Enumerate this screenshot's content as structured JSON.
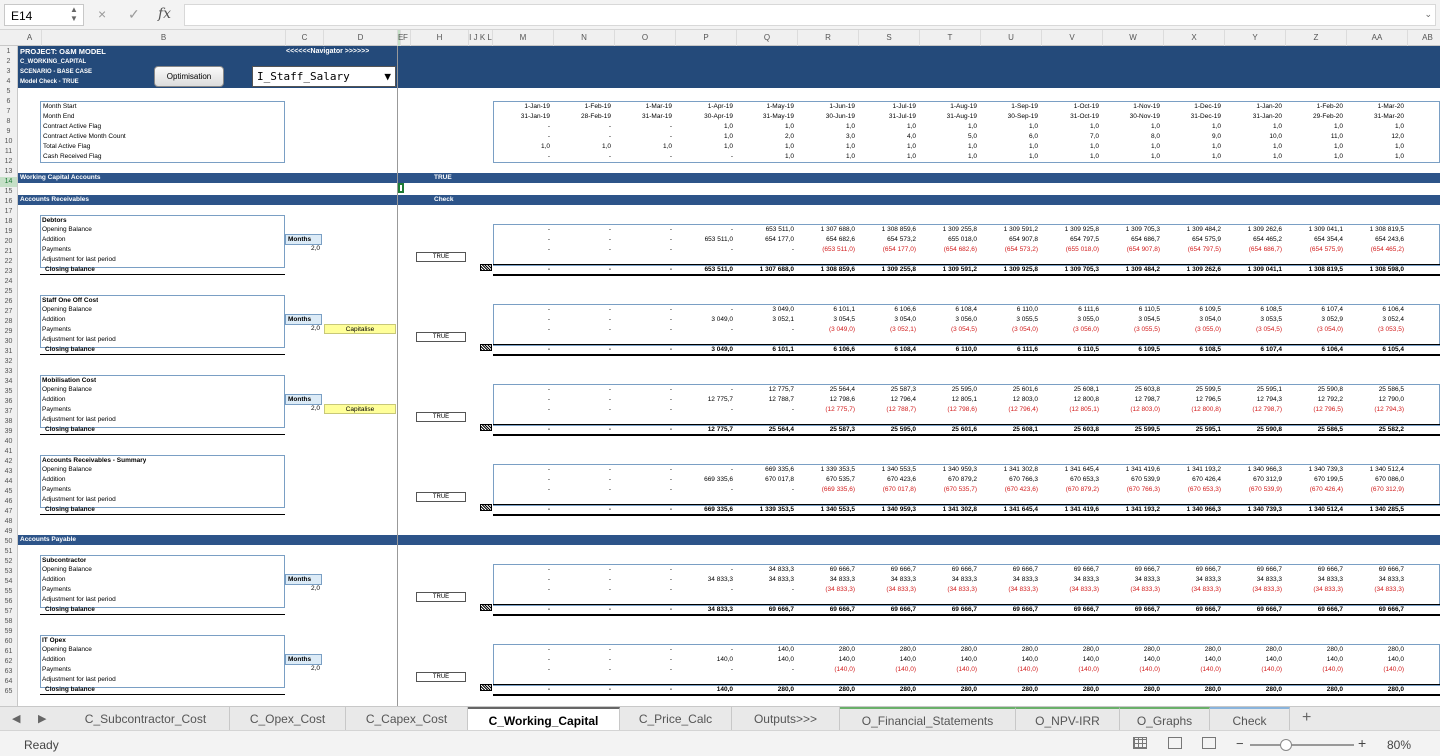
{
  "formula_bar": {
    "name_box": "E14",
    "cancel_icon": "×",
    "enter_icon": "✓",
    "fx_label": "fx",
    "formula": ""
  },
  "columns": [
    "A",
    "B",
    "C",
    "D",
    "E",
    "F",
    "G",
    "H",
    "I",
    "J",
    "K",
    "L",
    "M",
    "N",
    "O",
    "P",
    "Q",
    "R",
    "S",
    "T",
    "U",
    "V",
    "W",
    "X",
    "Y",
    "Z",
    "AA",
    "AB"
  ],
  "column_header_labels": {
    "E": "E",
    "FG": "F G",
    "H": "H",
    "IJKL": "I J K L",
    "M": "M",
    "N": "N",
    "O": "O",
    "P": "P",
    "Q": "Q",
    "R": "R",
    "S": "S",
    "T": "T",
    "U": "U",
    "V": "V",
    "W": "W",
    "X": "X",
    "Y": "Y",
    "Z": "Z",
    "AA": "AA",
    "AB": "AB",
    "A": "A",
    "B": "B",
    "C": "C",
    "D": "D"
  },
  "header": {
    "project": "PROJECT: O&M MODEL",
    "sheet": "C_WORKING_CAPITAL",
    "scenario": "SCENARIO - BASE CASE",
    "model_check": "Model Check - TRUE",
    "navigator": "<<<<<<Navigator >>>>>>",
    "optimisation_button": "Optimisation",
    "dropdown_value": "I_Staff_Salary",
    "dropdown_arrow": "▼"
  },
  "timing": {
    "labels": [
      "Month Start",
      "Month End",
      "Contract Active Flag",
      "Contract Active Month Count",
      "Total Active Flag",
      "Cash Received Flag"
    ],
    "cols": [
      [
        "1-Jan-19",
        "31-Jan-19",
        "-",
        "-",
        "1,0",
        "-"
      ],
      [
        "1-Feb-19",
        "28-Feb-19",
        "-",
        "-",
        "1,0",
        "-"
      ],
      [
        "1-Mar-19",
        "31-Mar-19",
        "-",
        "-",
        "1,0",
        "-"
      ],
      [
        "1-Apr-19",
        "30-Apr-19",
        "1,0",
        "1,0",
        "1,0",
        "-"
      ],
      [
        "1-May-19",
        "31-May-19",
        "1,0",
        "2,0",
        "1,0",
        "1,0"
      ],
      [
        "1-Jun-19",
        "30-Jun-19",
        "1,0",
        "3,0",
        "1,0",
        "1,0"
      ],
      [
        "1-Jul-19",
        "31-Jul-19",
        "1,0",
        "4,0",
        "1,0",
        "1,0"
      ],
      [
        "1-Aug-19",
        "31-Aug-19",
        "1,0",
        "5,0",
        "1,0",
        "1,0"
      ],
      [
        "1-Sep-19",
        "30-Sep-19",
        "1,0",
        "6,0",
        "1,0",
        "1,0"
      ],
      [
        "1-Oct-19",
        "31-Oct-19",
        "1,0",
        "7,0",
        "1,0",
        "1,0"
      ],
      [
        "1-Nov-19",
        "30-Nov-19",
        "1,0",
        "8,0",
        "1,0",
        "1,0"
      ],
      [
        "1-Dec-19",
        "31-Dec-19",
        "1,0",
        "9,0",
        "1,0",
        "1,0"
      ],
      [
        "1-Jan-20",
        "31-Jan-20",
        "1,0",
        "10,0",
        "1,0",
        "1,0"
      ],
      [
        "1-Feb-20",
        "29-Feb-20",
        "1,0",
        "11,0",
        "1,0",
        "1,0"
      ],
      [
        "1-Mar-20",
        "31-Mar-20",
        "1,0",
        "12,0",
        "1,0",
        "1,0"
      ]
    ]
  },
  "bands": {
    "working_capital": "Working Capital Accounts",
    "true_label": "TRUE",
    "accounts_receivables": "Accounts Receivables",
    "check_label": "Check",
    "accounts_payable": "Accounts Payable"
  },
  "row_labels": [
    "Opening Balance",
    "Addition",
    "Payments",
    "Adjustment for last period",
    "Closing balance"
  ],
  "months_label": "Months",
  "months_value": "2,0",
  "capitalise_label": "Capitalise",
  "true_check": "TRUE",
  "sections": [
    {
      "title": "Debtors",
      "capitalise": false,
      "rows": [
        [
          "-",
          "-",
          "-",
          "-",
          "653 511,0",
          "1 307 688,0",
          "1 308 859,6",
          "1 309 255,8",
          "1 309 591,2",
          "1 309 925,8",
          "1 309 705,3",
          "1 309 484,2",
          "1 309 262,6",
          "1 309 041,1",
          "1 308 819,5"
        ],
        [
          "-",
          "-",
          "-",
          "653 511,0",
          "654 177,0",
          "654 682,6",
          "654 573,2",
          "655 018,0",
          "654 907,8",
          "654 797,5",
          "654 686,7",
          "654 575,9",
          "654 465,2",
          "654 354,4",
          "654 243,6"
        ],
        [
          "-",
          "-",
          "-",
          "-",
          "-",
          "(653 511,0)",
          "(654 177,0)",
          "(654 682,6)",
          "(654 573,2)",
          "(655 018,0)",
          "(654 907,8)",
          "(654 797,5)",
          "(654 686,7)",
          "(654 575,9)",
          "(654 465,2)"
        ],
        [
          "",
          "",
          "",
          "",
          "",
          "",
          "",
          "",
          "",
          "",
          "",
          "",
          "",
          "",
          ""
        ],
        [
          "-",
          "-",
          "-",
          "653 511,0",
          "1 307 688,0",
          "1 308 859,6",
          "1 309 255,8",
          "1 309 591,2",
          "1 309 925,8",
          "1 309 705,3",
          "1 309 484,2",
          "1 309 262,6",
          "1 309 041,1",
          "1 308 819,5",
          "1 308 598,0"
        ]
      ]
    },
    {
      "title": "Staff One Off Cost",
      "capitalise": true,
      "rows": [
        [
          "-",
          "-",
          "-",
          "-",
          "3 049,0",
          "6 101,1",
          "6 106,6",
          "6 108,4",
          "6 110,0",
          "6 111,6",
          "6 110,5",
          "6 109,5",
          "6 108,5",
          "6 107,4",
          "6 106,4"
        ],
        [
          "-",
          "-",
          "-",
          "3 049,0",
          "3 052,1",
          "3 054,5",
          "3 054,0",
          "3 056,0",
          "3 055,5",
          "3 055,0",
          "3 054,5",
          "3 054,0",
          "3 053,5",
          "3 052,9",
          "3 052,4"
        ],
        [
          "-",
          "-",
          "-",
          "-",
          "-",
          "(3 049,0)",
          "(3 052,1)",
          "(3 054,5)",
          "(3 054,0)",
          "(3 056,0)",
          "(3 055,5)",
          "(3 055,0)",
          "(3 054,5)",
          "(3 054,0)",
          "(3 053,5)"
        ],
        [
          "",
          "",
          "",
          "",
          "",
          "",
          "",
          "",
          "",
          "",
          "",
          "",
          "",
          "",
          ""
        ],
        [
          "-",
          "-",
          "-",
          "3 049,0",
          "6 101,1",
          "6 106,6",
          "6 108,4",
          "6 110,0",
          "6 111,6",
          "6 110,5",
          "6 109,5",
          "6 108,5",
          "6 107,4",
          "6 106,4",
          "6 105,4"
        ]
      ]
    },
    {
      "title": "Mobilisation Cost",
      "capitalise": true,
      "rows": [
        [
          "-",
          "-",
          "-",
          "-",
          "12 775,7",
          "25 564,4",
          "25 587,3",
          "25 595,0",
          "25 601,6",
          "25 608,1",
          "25 603,8",
          "25 599,5",
          "25 595,1",
          "25 590,8",
          "25 586,5"
        ],
        [
          "-",
          "-",
          "-",
          "12 775,7",
          "12 788,7",
          "12 798,6",
          "12 796,4",
          "12 805,1",
          "12 803,0",
          "12 800,8",
          "12 798,7",
          "12 796,5",
          "12 794,3",
          "12 792,2",
          "12 790,0"
        ],
        [
          "-",
          "-",
          "-",
          "-",
          "-",
          "(12 775,7)",
          "(12 788,7)",
          "(12 798,6)",
          "(12 796,4)",
          "(12 805,1)",
          "(12 803,0)",
          "(12 800,8)",
          "(12 798,7)",
          "(12 796,5)",
          "(12 794,3)"
        ],
        [
          "",
          "",
          "",
          "",
          "",
          "",
          "",
          "",
          "",
          "",
          "",
          "",
          "",
          "",
          ""
        ],
        [
          "-",
          "-",
          "-",
          "12 775,7",
          "25 564,4",
          "25 587,3",
          "25 595,0",
          "25 601,6",
          "25 608,1",
          "25 603,8",
          "25 599,5",
          "25 595,1",
          "25 590,8",
          "25 586,5",
          "25 582,2"
        ]
      ]
    },
    {
      "title": "Accounts Receivables - Summary",
      "capitalise": false,
      "no_months": true,
      "rows": [
        [
          "-",
          "-",
          "-",
          "-",
          "669 335,6",
          "1 339 353,5",
          "1 340 553,5",
          "1 340 959,3",
          "1 341 302,8",
          "1 341 645,4",
          "1 341 419,6",
          "1 341 193,2",
          "1 340 966,3",
          "1 340 739,3",
          "1 340 512,4"
        ],
        [
          "-",
          "-",
          "-",
          "669 335,6",
          "670 017,8",
          "670 535,7",
          "670 423,6",
          "670 879,2",
          "670 766,3",
          "670 653,3",
          "670 539,9",
          "670 426,4",
          "670 312,9",
          "670 199,5",
          "670 086,0"
        ],
        [
          "-",
          "-",
          "-",
          "-",
          "-",
          "(669 335,6)",
          "(670 017,8)",
          "(670 535,7)",
          "(670 423,6)",
          "(670 879,2)",
          "(670 766,3)",
          "(670 653,3)",
          "(670 539,9)",
          "(670 426,4)",
          "(670 312,9)"
        ],
        [
          "",
          "",
          "",
          "",
          "",
          "",
          "",
          "",
          "",
          "",
          "",
          "",
          "",
          "",
          ""
        ],
        [
          "-",
          "-",
          "-",
          "669 335,6",
          "1 339 353,5",
          "1 340 553,5",
          "1 340 959,3",
          "1 341 302,8",
          "1 341 645,4",
          "1 341 419,6",
          "1 341 193,2",
          "1 340 966,3",
          "1 340 739,3",
          "1 340 512,4",
          "1 340 285,5"
        ]
      ]
    },
    {
      "title": "Subcontractor",
      "capitalise": false,
      "rows": [
        [
          "-",
          "-",
          "-",
          "-",
          "34 833,3",
          "69 666,7",
          "69 666,7",
          "69 666,7",
          "69 666,7",
          "69 666,7",
          "69 666,7",
          "69 666,7",
          "69 666,7",
          "69 666,7",
          "69 666,7"
        ],
        [
          "-",
          "-",
          "-",
          "34 833,3",
          "34 833,3",
          "34 833,3",
          "34 833,3",
          "34 833,3",
          "34 833,3",
          "34 833,3",
          "34 833,3",
          "34 833,3",
          "34 833,3",
          "34 833,3",
          "34 833,3"
        ],
        [
          "-",
          "-",
          "-",
          "-",
          "-",
          "(34 833,3)",
          "(34 833,3)",
          "(34 833,3)",
          "(34 833,3)",
          "(34 833,3)",
          "(34 833,3)",
          "(34 833,3)",
          "(34 833,3)",
          "(34 833,3)",
          "(34 833,3)"
        ],
        [
          "",
          "",
          "",
          "",
          "",
          "",
          "",
          "",
          "",
          "",
          "",
          "",
          "",
          "",
          ""
        ],
        [
          "-",
          "-",
          "-",
          "34 833,3",
          "69 666,7",
          "69 666,7",
          "69 666,7",
          "69 666,7",
          "69 666,7",
          "69 666,7",
          "69 666,7",
          "69 666,7",
          "69 666,7",
          "69 666,7",
          "69 666,7"
        ]
      ]
    },
    {
      "title": "IT Opex",
      "capitalise": false,
      "rows": [
        [
          "-",
          "-",
          "-",
          "-",
          "140,0",
          "280,0",
          "280,0",
          "280,0",
          "280,0",
          "280,0",
          "280,0",
          "280,0",
          "280,0",
          "280,0",
          "280,0"
        ],
        [
          "-",
          "-",
          "-",
          "140,0",
          "140,0",
          "140,0",
          "140,0",
          "140,0",
          "140,0",
          "140,0",
          "140,0",
          "140,0",
          "140,0",
          "140,0",
          "140,0"
        ],
        [
          "-",
          "-",
          "-",
          "-",
          "-",
          "(140,0)",
          "(140,0)",
          "(140,0)",
          "(140,0)",
          "(140,0)",
          "(140,0)",
          "(140,0)",
          "(140,0)",
          "(140,0)",
          "(140,0)"
        ],
        [
          "",
          "",
          "",
          "",
          "",
          "",
          "",
          "",
          "",
          "",
          "",
          "",
          "",
          "",
          ""
        ],
        [
          "-",
          "-",
          "-",
          "140,0",
          "280,0",
          "280,0",
          "280,0",
          "280,0",
          "280,0",
          "280,0",
          "280,0",
          "280,0",
          "280,0",
          "280,0",
          "280,0"
        ]
      ]
    }
  ],
  "tabs": [
    {
      "label": "C_Subcontractor_Cost",
      "style": ""
    },
    {
      "label": "C_Opex_Cost",
      "style": ""
    },
    {
      "label": "C_Capex_Cost",
      "style": ""
    },
    {
      "label": "C_Working_Capital",
      "style": "active"
    },
    {
      "label": "C_Price_Calc",
      "style": ""
    },
    {
      "label": "Outputs>>>",
      "style": ""
    },
    {
      "label": "O_Financial_Statements",
      "style": "green"
    },
    {
      "label": "O_NPV-IRR",
      "style": "green"
    },
    {
      "label": "O_Graphs",
      "style": "green"
    },
    {
      "label": "Check",
      "style": "blue"
    }
  ],
  "add_sheet": "+",
  "status": {
    "text": "Ready",
    "zoom": "80%",
    "zoom_level": 0.35
  }
}
